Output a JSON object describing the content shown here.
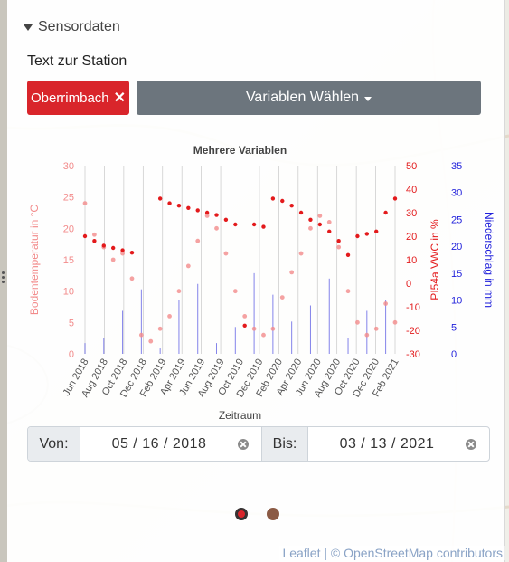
{
  "panel": {
    "section_title": "Sensordaten",
    "station_label": "Text zur Station",
    "station_chip": "Oberrimbach",
    "variables_button": "Variablen Wählen"
  },
  "chart_data": {
    "type": "line",
    "title": "Mehrere Variablen",
    "xlabel": "Zeitraum",
    "x_ticks": [
      "Jun 2018",
      "Aug 2018",
      "Oct 2018",
      "Dec 2018",
      "Feb 2019",
      "Apr 2019",
      "Jun 2019",
      "Aug 2019",
      "Oct 2019",
      "Dec 2019",
      "Feb 2020",
      "Apr 2020",
      "Jun 2020",
      "Aug 2020",
      "Oct 2020",
      "Dec 2020",
      "Feb 2021"
    ],
    "axes": [
      {
        "label": "Bodentemperatur in °C",
        "side": "left",
        "range": [
          0,
          30
        ],
        "ticks": [
          0,
          5,
          10,
          15,
          20,
          25,
          30
        ],
        "color": "#f28b8b"
      },
      {
        "label": "PI54a VWC in %",
        "side": "right",
        "range": [
          -30,
          50
        ],
        "ticks": [
          -30,
          -20,
          -10,
          0,
          10,
          20,
          30,
          40,
          50
        ],
        "color": "#e31a1c"
      },
      {
        "label": "Niederschlag in mm",
        "side": "right",
        "range": [
          0,
          35
        ],
        "ticks": [
          0,
          5,
          10,
          15,
          20,
          25,
          30,
          35
        ],
        "color": "#1f1fdb"
      }
    ],
    "series": [
      {
        "name": "Bodentemperatur in °C",
        "color": "#f28b8b",
        "x": [
          0,
          1,
          2,
          3,
          4,
          5,
          6,
          7,
          8,
          9,
          10,
          11,
          12,
          13,
          14,
          15,
          16,
          17,
          18,
          19,
          20,
          21,
          22,
          23,
          24,
          25,
          26,
          27,
          28,
          29,
          30,
          31,
          32,
          33
        ],
        "values": [
          24,
          19,
          17,
          15,
          16,
          12,
          3,
          2,
          4,
          6,
          10,
          14,
          18,
          22,
          20,
          16,
          10,
          6,
          4,
          3,
          4,
          9,
          13,
          16,
          20,
          22,
          21,
          17,
          10,
          5,
          3,
          4,
          8,
          5
        ]
      },
      {
        "name": "PI54a VWC in %",
        "color": "#e31a1c",
        "x": [
          0,
          1,
          2,
          3,
          4,
          5,
          6,
          7,
          8,
          9,
          10,
          11,
          12,
          13,
          14,
          15,
          16,
          17,
          18,
          19,
          20,
          21,
          22,
          23,
          24,
          25,
          26,
          27,
          28,
          29,
          30,
          31,
          32,
          33
        ],
        "values": [
          20,
          18,
          16,
          15,
          14,
          13,
          null,
          null,
          36,
          34,
          33,
          32,
          31,
          30,
          29,
          27,
          25,
          -18,
          25,
          24,
          36,
          35,
          33,
          30,
          27,
          25,
          22,
          18,
          12,
          20,
          21,
          22,
          30,
          36
        ]
      },
      {
        "name": "Niederschlag in mm",
        "color": "#1f1fdb",
        "x": [
          0,
          2,
          4,
          6,
          8,
          10,
          12,
          14,
          16,
          18,
          20,
          22,
          24,
          26,
          28,
          30,
          32
        ],
        "values": [
          2,
          3,
          8,
          12,
          1,
          10,
          13,
          2,
          5,
          15,
          11,
          6,
          9,
          14,
          3,
          8,
          10
        ]
      }
    ],
    "legend": "none",
    "grid": "vertical"
  },
  "daterange": {
    "from_label": "Von:",
    "from_value": "05 / 16 / 2018",
    "to_label": "Bis:",
    "to_value": "03 / 13 / 2021"
  },
  "attribution": {
    "leaflet": "Leaflet",
    "separator": " | © ",
    "osm": "OpenStreetMap",
    "contributors": " contributors"
  },
  "colors": {
    "accent_red": "#d9252b",
    "button_gray": "#6c757d",
    "dot_brown": "#8b5a44"
  }
}
